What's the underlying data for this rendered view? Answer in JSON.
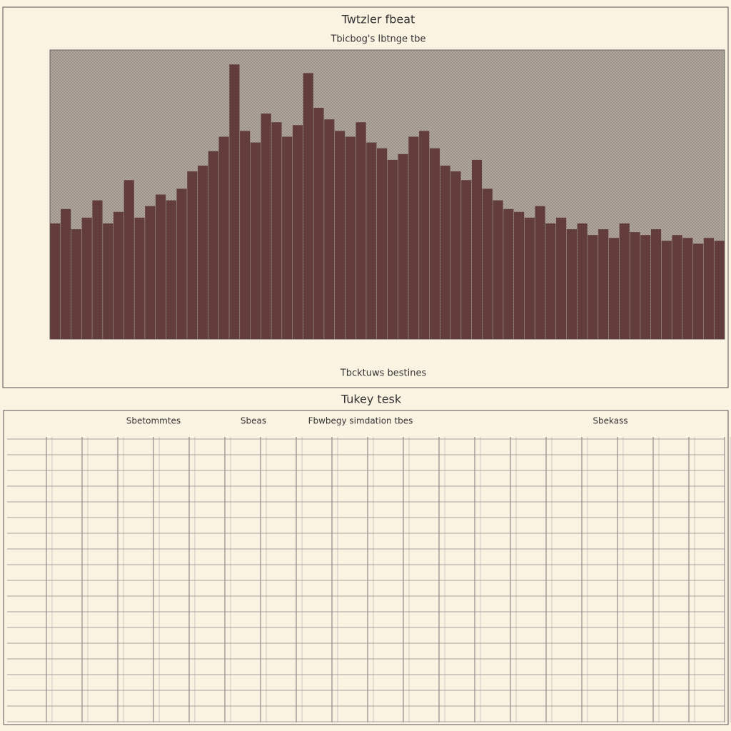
{
  "chart_data": {
    "type": "bar",
    "title": "Twtzler fbeat",
    "subtitle": "Tbicbog's Ibtnge tbe",
    "x_label": "Tbcktuws bestines",
    "values": [
      40,
      45,
      38,
      42,
      48,
      40,
      44,
      55,
      42,
      46,
      50,
      48,
      52,
      58,
      60,
      65,
      70,
      95,
      72,
      68,
      78,
      75,
      70,
      74,
      92,
      80,
      76,
      72,
      70,
      75,
      68,
      66,
      62,
      64,
      70,
      72,
      66,
      60,
      58,
      55,
      62,
      52,
      48,
      45,
      44,
      42,
      46,
      40,
      42,
      38,
      40,
      36,
      38,
      35,
      40,
      37,
      36,
      38,
      34,
      36,
      35,
      33,
      35,
      34
    ],
    "ylim": [
      0,
      100
    ],
    "color": "#5b3232"
  },
  "table": {
    "title": "Tukey tesk",
    "group_headers": [
      "Sbetommtes",
      "Sbeas",
      "Fbwbegy simdation tbes",
      "Sbekass"
    ]
  }
}
